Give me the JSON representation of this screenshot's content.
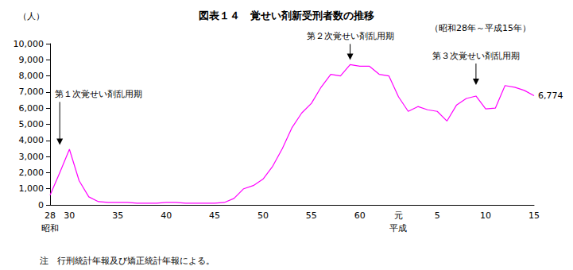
{
  "chart_data": {
    "type": "line",
    "title": "図表１４　覚せい剤新受刑者数の推移",
    "subtitle": "（昭和28年～平成15年）",
    "y_label": "（人）",
    "note": "注　行刑統計年報及び矯正統計年報による。",
    "categories": [
      "28",
      null,
      "30",
      null,
      null,
      null,
      null,
      "35",
      null,
      null,
      null,
      null,
      "40",
      null,
      null,
      null,
      null,
      "45",
      null,
      null,
      null,
      null,
      "50",
      null,
      null,
      null,
      null,
      "55",
      null,
      null,
      null,
      null,
      "60",
      null,
      null,
      null,
      "元",
      null,
      null,
      null,
      "5",
      null,
      null,
      null,
      null,
      "10",
      null,
      null,
      null,
      null,
      "15"
    ],
    "era_labels": [
      {
        "text": "昭和",
        "index": 0
      },
      {
        "text": "平成",
        "index": 36
      }
    ],
    "annotations": [
      {
        "text": "第１次覚せい剤乱用期",
        "index": 1
      },
      {
        "text": "第２次覚せい剤乱用期",
        "index": 31
      },
      {
        "text": "第３次覚せい剤乱用期",
        "index": 44
      }
    ],
    "values": [
      600,
      2000,
      3450,
      1500,
      500,
      200,
      150,
      150,
      150,
      100,
      100,
      100,
      150,
      150,
      100,
      100,
      100,
      100,
      150,
      400,
      1000,
      1200,
      1600,
      2400,
      3500,
      4800,
      5700,
      6300,
      7300,
      8100,
      8000,
      8700,
      8600,
      8600,
      8100,
      8000,
      6700,
      5800,
      6100,
      5900,
      5800,
      5200,
      6200,
      6600,
      6750,
      5950,
      6000,
      7400,
      7300,
      7100,
      6774
    ],
    "value_labels": [
      null,
      null,
      null,
      null,
      null,
      null,
      null,
      null,
      null,
      null,
      null,
      null,
      null,
      null,
      null,
      null,
      null,
      null,
      null,
      null,
      null,
      null,
      null,
      null,
      null,
      null,
      null,
      null,
      null,
      null,
      null,
      null,
      null,
      null,
      null,
      null,
      null,
      null,
      null,
      null,
      null,
      null,
      null,
      null,
      null,
      null,
      null,
      null,
      null,
      null,
      "6,774"
    ],
    "color": "#ff00ff",
    "ylim": [
      0,
      10000
    ],
    "yticks": [
      0,
      {
        "value": 1000,
        "label": "1,000"
      },
      {
        "value": 2000,
        "label": "2,000"
      },
      {
        "value": 3000,
        "label": "3,000"
      },
      {
        "value": 4000,
        "label": "4,000"
      },
      {
        "value": 5000,
        "label": "5,000"
      },
      {
        "value": 6000,
        "label": "6,000"
      },
      {
        "value": 7000,
        "label": "7,000"
      },
      {
        "value": 8000,
        "label": "8,000"
      },
      {
        "value": 9000,
        "label": "9,000"
      },
      {
        "value": 10000,
        "label": "10,000"
      }
    ],
    "grid": false
  }
}
